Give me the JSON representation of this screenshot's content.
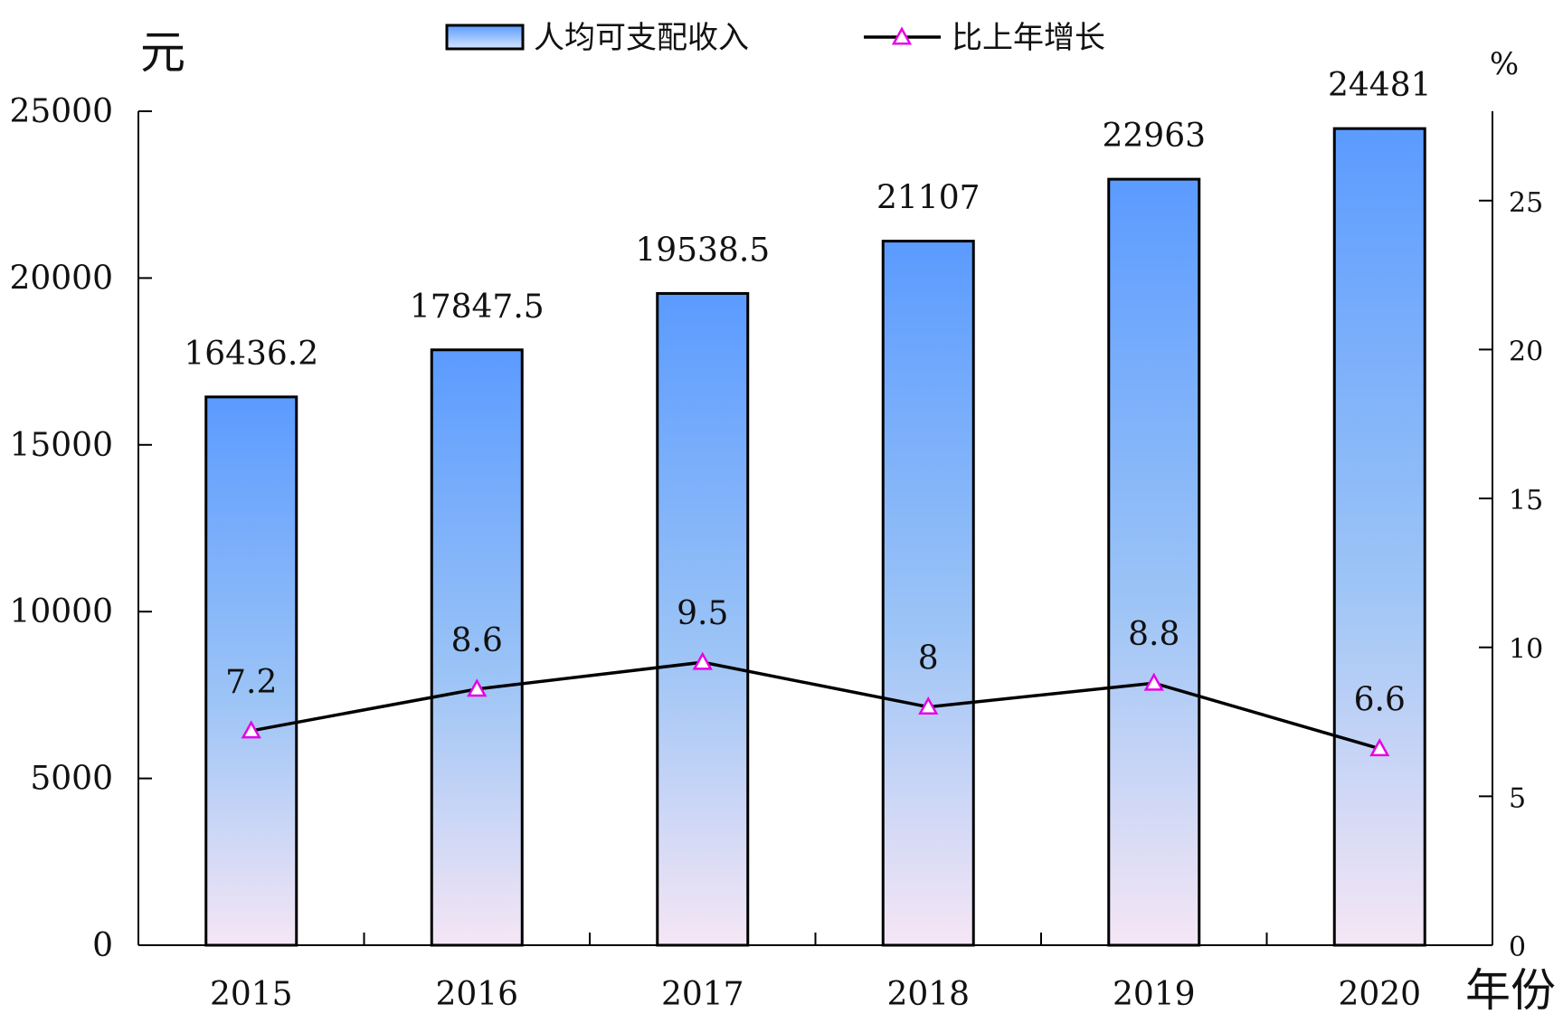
{
  "chart_data": {
    "type": "bar",
    "categories": [
      "2015",
      "2016",
      "2017",
      "2018",
      "2019",
      "2020"
    ],
    "series": [
      {
        "name": "人均可支配收入",
        "type": "bar",
        "axis": "left",
        "values": [
          16436.2,
          17847.5,
          19538.5,
          21107,
          22963,
          24481
        ],
        "value_labels": [
          "16436.2",
          "17847.5",
          "19538.5",
          "21107",
          "22963",
          "24481"
        ]
      },
      {
        "name": "比上年增长",
        "type": "line",
        "axis": "right",
        "values": [
          7.2,
          8.6,
          9.5,
          8,
          8.8,
          6.6
        ],
        "value_labels": [
          "7.2",
          "8.6",
          "9.5",
          "8",
          "8.8",
          "6.6"
        ]
      }
    ],
    "ylabel": "元",
    "y2label": "%",
    "xlabel": "年份",
    "ylim": [
      0,
      25000
    ],
    "y2lim": [
      0,
      28
    ],
    "yticks": [
      "0",
      "5000",
      "10000",
      "15000",
      "20000",
      "25000"
    ],
    "y2ticks": [
      "0",
      "5",
      "10",
      "15",
      "20",
      "25"
    ],
    "legend_position": "top",
    "grid": false,
    "colors": {
      "bar_top": "#5B9BFF",
      "bar_bottom": "#F5E6F5",
      "bar_outline": "#000000",
      "line": "#000000",
      "marker": "#E600E6"
    }
  }
}
